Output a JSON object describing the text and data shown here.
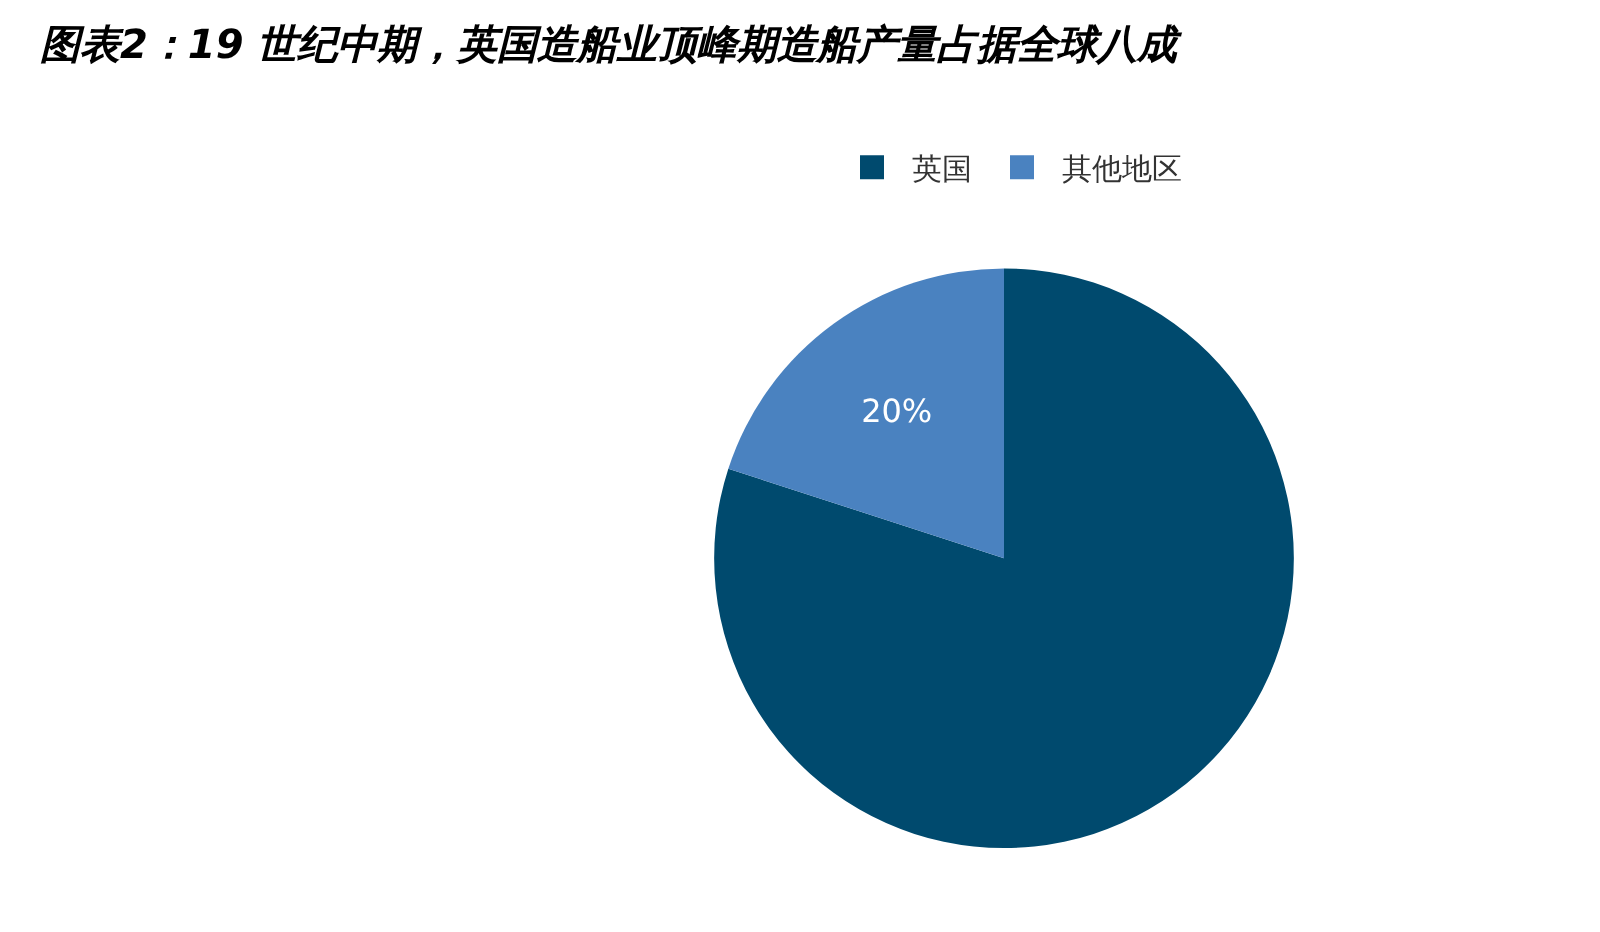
{
  "chart_data": {
    "type": "pie",
    "title": "图表2：19 世纪中期，英国造船业顶峰期造船产量占据全球八成",
    "categories": [
      "英国",
      "其他地区"
    ],
    "values": [
      80,
      20
    ],
    "value_labels": [
      null,
      "20%"
    ],
    "colors": [
      "#004a6e",
      "#4a82c0"
    ],
    "legend": "top"
  }
}
